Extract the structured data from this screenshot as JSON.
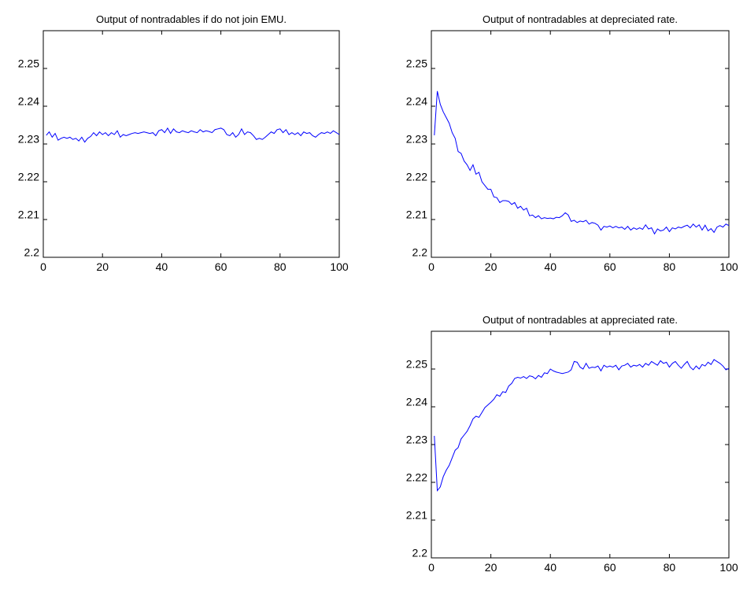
{
  "chart_data": [
    {
      "type": "line",
      "title": "Output of nontradables if do not join EMU.",
      "color": "#0000ff",
      "x": [
        1,
        2,
        3,
        4,
        5,
        6,
        7,
        8,
        9,
        10,
        11,
        12,
        13,
        14,
        15,
        16,
        17,
        18,
        19,
        20,
        21,
        22,
        23,
        24,
        25,
        26,
        27,
        28,
        29,
        30,
        31,
        32,
        33,
        34,
        35,
        36,
        37,
        38,
        39,
        40,
        41,
        42,
        43,
        44,
        45,
        46,
        47,
        48,
        49,
        50,
        51,
        52,
        53,
        54,
        55,
        56,
        57,
        58,
        59,
        60,
        61,
        62,
        63,
        64,
        65,
        66,
        67,
        68,
        69,
        70,
        71,
        72,
        73,
        74,
        75,
        76,
        77,
        78,
        79,
        80,
        81,
        82,
        83,
        84,
        85,
        86,
        87,
        88,
        89,
        90,
        91,
        92,
        93,
        94,
        95,
        96,
        97,
        98,
        99,
        100
      ],
      "values": [
        2.2323,
        2.2332,
        2.2318,
        2.2328,
        2.231,
        2.2315,
        2.2318,
        2.2315,
        2.2318,
        2.2312,
        2.2315,
        2.2308,
        2.2318,
        2.2305,
        2.2315,
        2.232,
        2.233,
        2.2322,
        2.2332,
        2.2325,
        2.233,
        2.2322,
        2.233,
        2.2325,
        2.2335,
        2.2318,
        2.2325,
        2.2322,
        2.2325,
        2.2328,
        2.233,
        2.2328,
        2.233,
        2.2332,
        2.233,
        2.2328,
        2.233,
        2.2322,
        2.2335,
        2.2338,
        2.233,
        2.2342,
        2.2328,
        2.234,
        2.2332,
        2.233,
        2.2335,
        2.2332,
        2.233,
        2.2335,
        2.2332,
        2.233,
        2.2338,
        2.2332,
        2.2335,
        2.2333,
        2.233,
        2.2338,
        2.234,
        2.2342,
        2.2338,
        2.2325,
        2.2322,
        2.233,
        2.2318,
        2.2325,
        2.234,
        2.2325,
        2.2332,
        2.233,
        2.2322,
        2.2312,
        2.2315,
        2.2312,
        2.2318,
        2.2325,
        2.2332,
        2.2328,
        2.2338,
        2.234,
        2.233,
        2.2338,
        2.2325,
        2.233,
        2.2325,
        2.233,
        2.2322,
        2.2332,
        2.2328,
        2.233,
        2.2322,
        2.2318,
        2.2325,
        2.233,
        2.2328,
        2.2332,
        2.2328,
        2.2335,
        2.233,
        2.2325
      ],
      "xlim": [
        0,
        100
      ],
      "xticks": [
        0,
        20,
        40,
        60,
        80,
        100
      ],
      "ylim": [
        2.2,
        2.26
      ],
      "yticks": [
        2.2,
        2.21,
        2.22,
        2.23,
        2.24,
        2.25
      ]
    },
    {
      "type": "line",
      "title": "Output of nontradables at depreciated rate.",
      "color": "#0000ff",
      "x": [
        1,
        2,
        3,
        4,
        5,
        6,
        7,
        8,
        9,
        10,
        11,
        12,
        13,
        14,
        15,
        16,
        17,
        18,
        19,
        20,
        21,
        22,
        23,
        24,
        25,
        26,
        27,
        28,
        29,
        30,
        31,
        32,
        33,
        34,
        35,
        36,
        37,
        38,
        39,
        40,
        41,
        42,
        43,
        44,
        45,
        46,
        47,
        48,
        49,
        50,
        51,
        52,
        53,
        54,
        55,
        56,
        57,
        58,
        59,
        60,
        61,
        62,
        63,
        64,
        65,
        66,
        67,
        68,
        69,
        70,
        71,
        72,
        73,
        74,
        75,
        76,
        77,
        78,
        79,
        80,
        81,
        82,
        83,
        84,
        85,
        86,
        87,
        88,
        89,
        90,
        91,
        92,
        93,
        94,
        95,
        96,
        97,
        98,
        99,
        100
      ],
      "values": [
        2.2323,
        2.244,
        2.2405,
        2.2385,
        2.237,
        2.2355,
        2.233,
        2.2315,
        2.228,
        2.2275,
        2.2255,
        2.2245,
        2.223,
        2.2245,
        2.222,
        2.2225,
        2.22,
        2.219,
        2.218,
        2.218,
        2.216,
        2.2158,
        2.2145,
        2.215,
        2.215,
        2.2148,
        2.214,
        2.2145,
        2.213,
        2.2135,
        2.2125,
        2.213,
        2.211,
        2.2112,
        2.2105,
        2.211,
        2.2102,
        2.2105,
        2.2103,
        2.2104,
        2.2102,
        2.2106,
        2.2105,
        2.211,
        2.2118,
        2.2112,
        2.2095,
        2.2098,
        2.2092,
        2.2096,
        2.2094,
        2.2098,
        2.2088,
        2.2092,
        2.209,
        2.2085,
        2.2072,
        2.2082,
        2.208,
        2.2083,
        2.2078,
        2.2082,
        2.2078,
        2.208,
        2.2074,
        2.2082,
        2.2072,
        2.2078,
        2.2074,
        2.2078,
        2.2074,
        2.2086,
        2.2075,
        2.2078,
        2.2062,
        2.2075,
        2.207,
        2.2072,
        2.208,
        2.2068,
        2.2078,
        2.2075,
        2.208,
        2.2078,
        2.2082,
        2.2085,
        2.2078,
        2.2088,
        2.208,
        2.2086,
        2.2072,
        2.2085,
        2.207,
        2.2076,
        2.2066,
        2.208,
        2.2084,
        2.208,
        2.2088,
        2.2084
      ],
      "xlim": [
        0,
        100
      ],
      "xticks": [
        0,
        20,
        40,
        60,
        80,
        100
      ],
      "ylim": [
        2.2,
        2.26
      ],
      "yticks": [
        2.2,
        2.21,
        2.22,
        2.23,
        2.24,
        2.25
      ]
    },
    {
      "type": "line",
      "title": "Output of nontradables at appreciated rate.",
      "color": "#0000ff",
      "x": [
        1,
        2,
        3,
        4,
        5,
        6,
        7,
        8,
        9,
        10,
        11,
        12,
        13,
        14,
        15,
        16,
        17,
        18,
        19,
        20,
        21,
        22,
        23,
        24,
        25,
        26,
        27,
        28,
        29,
        30,
        31,
        32,
        33,
        34,
        35,
        36,
        37,
        38,
        39,
        40,
        41,
        42,
        43,
        44,
        45,
        46,
        47,
        48,
        49,
        50,
        51,
        52,
        53,
        54,
        55,
        56,
        57,
        58,
        59,
        60,
        61,
        62,
        63,
        64,
        65,
        66,
        67,
        68,
        69,
        70,
        71,
        72,
        73,
        74,
        75,
        76,
        77,
        78,
        79,
        80,
        81,
        82,
        83,
        84,
        85,
        86,
        87,
        88,
        89,
        90,
        91,
        92,
        93,
        94,
        95,
        96,
        97,
        98,
        99,
        100
      ],
      "values": [
        2.2323,
        2.2178,
        2.2188,
        2.2215,
        2.2232,
        2.2245,
        2.2265,
        2.2285,
        2.2292,
        2.2315,
        2.2325,
        2.2335,
        2.235,
        2.2368,
        2.2375,
        2.2372,
        2.2385,
        2.2398,
        2.2405,
        2.2412,
        2.242,
        2.2432,
        2.2428,
        2.244,
        2.2438,
        2.2455,
        2.2462,
        2.2475,
        2.2478,
        2.2476,
        2.248,
        2.2475,
        2.2482,
        2.248,
        2.2474,
        2.2483,
        2.2478,
        2.249,
        2.2488,
        2.25,
        2.2495,
        2.2492,
        2.249,
        2.2488,
        2.249,
        2.2492,
        2.2498,
        2.252,
        2.2518,
        2.2505,
        2.25,
        2.2515,
        2.2502,
        2.2505,
        2.2504,
        2.2508,
        2.2495,
        2.251,
        2.2505,
        2.2508,
        2.2505,
        2.251,
        2.2498,
        2.2508,
        2.251,
        2.2515,
        2.2505,
        2.251,
        2.2508,
        2.2512,
        2.2505,
        2.2515,
        2.251,
        2.252,
        2.2515,
        2.251,
        2.2522,
        2.2515,
        2.2518,
        2.2505,
        2.2515,
        2.252,
        2.251,
        2.2502,
        2.2512,
        2.252,
        2.2505,
        2.2498,
        2.2508,
        2.25,
        2.2512,
        2.2508,
        2.2518,
        2.2512,
        2.2525,
        2.252,
        2.2515,
        2.2508,
        2.2498,
        2.2502
      ],
      "xlim": [
        0,
        100
      ],
      "xticks": [
        0,
        20,
        40,
        60,
        80,
        100
      ],
      "ylim": [
        2.2,
        2.26
      ],
      "yticks": [
        2.2,
        2.21,
        2.22,
        2.23,
        2.24,
        2.25
      ]
    }
  ]
}
